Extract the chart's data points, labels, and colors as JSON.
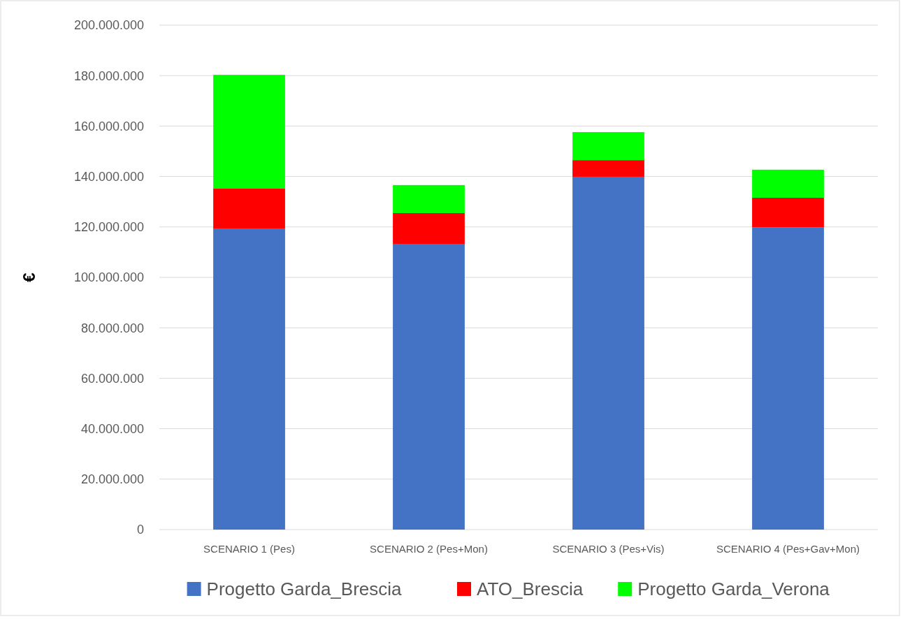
{
  "chart_data": {
    "type": "bar",
    "stacked": true,
    "ylabel": "€",
    "categories": [
      "SCENARIO 1 (Pes)",
      "SCENARIO 2 (Pes+Mon)",
      "SCENARIO 3 (Pes+Vis)",
      "SCENARIO 4 (Pes+Gav+Mon)"
    ],
    "series": [
      {
        "name": "Progetto Garda_Brescia",
        "color": "#4472c4",
        "values": [
          119400000,
          113300000,
          139900000,
          119900000
        ]
      },
      {
        "name": "ATO_Brescia",
        "color": "#ff0000",
        "values": [
          15800000,
          12200000,
          6600000,
          11700000
        ]
      },
      {
        "name": "Progetto Garda_Verona",
        "color": "#00ff00",
        "values": [
          45100000,
          11100000,
          11100000,
          11100000
        ]
      }
    ],
    "ylim": [
      0,
      200000000
    ],
    "yticks": [
      {
        "value": 0,
        "label": "0"
      },
      {
        "value": 20000000,
        "label": "20.000.000"
      },
      {
        "value": 40000000,
        "label": "40.000.000"
      },
      {
        "value": 60000000,
        "label": "60.000.000"
      },
      {
        "value": 80000000,
        "label": "80.000.000"
      },
      {
        "value": 100000000,
        "label": "100.000.000"
      },
      {
        "value": 120000000,
        "label": "120.000.000"
      },
      {
        "value": 140000000,
        "label": "140.000.000"
      },
      {
        "value": 160000000,
        "label": "160.000.000"
      },
      {
        "value": 180000000,
        "label": "180.000.000"
      },
      {
        "value": 200000000,
        "label": "200.000.000"
      }
    ],
    "grid": "y",
    "legend": "bottom"
  }
}
